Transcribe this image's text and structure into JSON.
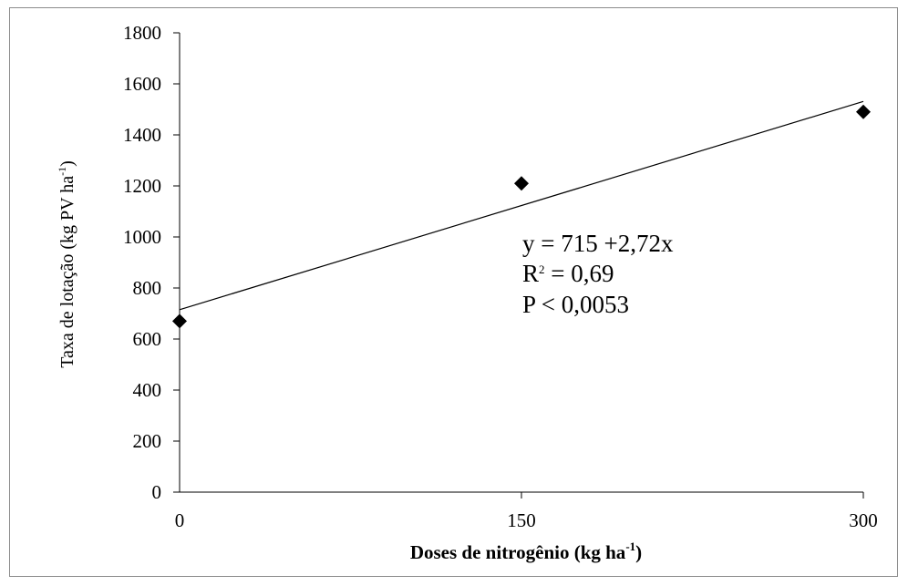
{
  "chart_data": {
    "type": "scatter",
    "title": "",
    "xlabel": "Doses de nitrogênio (kg ha-1)",
    "xlabel_main": "Doses de nitrogênio (kg ha",
    "xlabel_sup": "-1",
    "xlabel_end": ")",
    "ylabel": "Taxa de lotação (kg PV ha-1)",
    "ylabel_main": "Taxa de lotação (kg PV ha",
    "ylabel_sup": "-1",
    "ylabel_end": ")",
    "xlim": [
      0,
      300
    ],
    "ylim": [
      0,
      1800
    ],
    "x_ticks": [
      0,
      150,
      300
    ],
    "x_tick_labels": [
      "0",
      "150",
      "300"
    ],
    "y_ticks": [
      0,
      200,
      400,
      600,
      800,
      1000,
      1200,
      1400,
      1600,
      1800
    ],
    "y_tick_labels": [
      "0",
      "200",
      "400",
      "600",
      "800",
      "1000",
      "1200",
      "1400",
      "1600",
      "1800"
    ],
    "grid": false,
    "series": [
      {
        "points": [
          {
            "x": 0,
            "y": 670
          },
          {
            "x": 150,
            "y": 1210
          },
          {
            "x": 300,
            "y": 1490
          }
        ],
        "marker": "diamond",
        "color": "#000000"
      }
    ],
    "trendline": {
      "intercept": 715,
      "slope": 2.72,
      "x_range": [
        0,
        300
      ],
      "color": "#000000"
    },
    "annotations": {
      "equation": "y = 715 +2,72x",
      "r2_prefix": "R",
      "r2_sup": "2",
      "r2_value": " = 0,69",
      "p_value": "P < 0,0053"
    }
  }
}
